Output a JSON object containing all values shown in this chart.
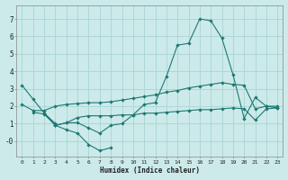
{
  "color": "#1f7872",
  "background": "#cceaea",
  "grid_color": "#aad4d4",
  "xlabel": "Humidex (Indice chaleur)",
  "xlim": [
    -0.5,
    23.5
  ],
  "ylim": [
    -0.9,
    7.8
  ],
  "yticks": [
    0,
    1,
    2,
    3,
    4,
    5,
    6,
    7
  ],
  "ytick_labels": [
    "-0",
    "1",
    "2",
    "3",
    "4",
    "5",
    "6",
    "7"
  ],
  "xticks": [
    0,
    1,
    2,
    3,
    4,
    5,
    6,
    7,
    8,
    9,
    10,
    11,
    12,
    13,
    14,
    15,
    16,
    17,
    18,
    19,
    20,
    21,
    22,
    23
  ],
  "line1_x": [
    0,
    1,
    2,
    3
  ],
  "line1_y": [
    3.2,
    2.4,
    1.6,
    1.0
  ],
  "line2_x": [
    2,
    3,
    4,
    5,
    6,
    7,
    8
  ],
  "line2_y": [
    1.6,
    0.9,
    0.65,
    0.45,
    -0.2,
    -0.55,
    -0.38
  ],
  "line3_x": [
    0,
    1,
    2,
    3,
    4,
    5,
    6,
    7,
    8,
    9,
    10,
    11,
    12,
    13,
    14,
    15,
    16,
    17,
    18,
    19,
    20,
    21,
    22,
    23
  ],
  "line3_y": [
    2.1,
    1.75,
    1.75,
    2.0,
    2.1,
    2.15,
    2.2,
    2.2,
    2.25,
    2.35,
    2.45,
    2.55,
    2.65,
    2.8,
    2.9,
    3.05,
    3.15,
    3.25,
    3.35,
    3.25,
    3.2,
    1.85,
    2.0,
    2.0
  ],
  "line4_x": [
    1,
    2,
    3,
    4,
    5,
    6,
    7,
    8,
    9,
    10,
    11,
    12,
    13,
    14,
    15,
    16,
    17,
    18,
    19,
    20,
    21,
    22,
    23
  ],
  "line4_y": [
    1.65,
    1.55,
    0.9,
    1.05,
    1.35,
    1.45,
    1.45,
    1.45,
    1.5,
    1.5,
    1.6,
    1.6,
    1.65,
    1.7,
    1.75,
    1.8,
    1.8,
    1.85,
    1.9,
    1.85,
    1.2,
    1.85,
    1.9
  ],
  "line5_x": [
    3,
    4,
    5,
    6,
    7,
    8,
    9,
    10,
    11,
    12,
    13,
    14,
    15,
    16,
    17,
    18,
    19,
    20,
    21,
    22,
    23
  ],
  "line5_y": [
    0.9,
    1.05,
    1.05,
    0.75,
    0.45,
    0.9,
    1.0,
    1.5,
    2.1,
    2.2,
    3.7,
    5.5,
    5.6,
    7.0,
    6.9,
    5.9,
    3.8,
    1.3,
    2.5,
    2.0,
    1.9
  ]
}
